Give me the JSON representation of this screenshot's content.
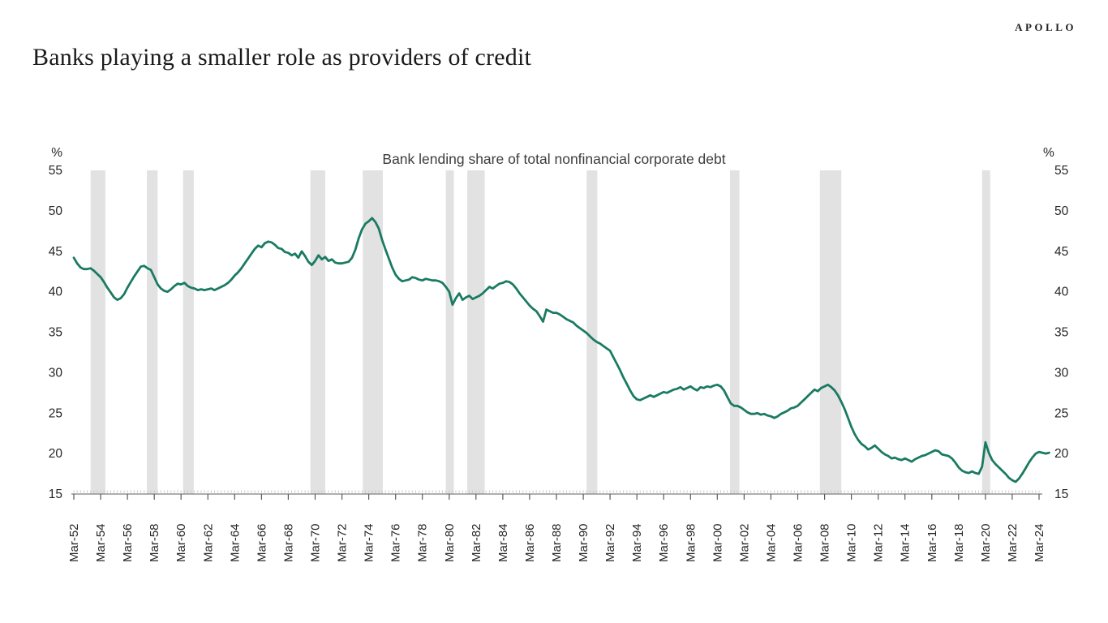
{
  "brand": {
    "logo": "APOLLO"
  },
  "header": {
    "title": "Banks playing a smaller role as providers of credit"
  },
  "chart_data": {
    "type": "line",
    "title": "Bank lending share of total nonfinancial corporate debt",
    "y_unit": "%",
    "ylim": [
      15,
      55
    ],
    "yticks": [
      15,
      20,
      25,
      30,
      35,
      40,
      45,
      50,
      55
    ],
    "grid": "off",
    "legend": "none",
    "x_tick_labels": [
      "Mar-52",
      "Mar-54",
      "Mar-56",
      "Mar-58",
      "Mar-60",
      "Mar-62",
      "Mar-64",
      "Mar-66",
      "Mar-68",
      "Mar-70",
      "Mar-72",
      "Mar-74",
      "Mar-76",
      "Mar-78",
      "Mar-80",
      "Mar-82",
      "Mar-84",
      "Mar-86",
      "Mar-88",
      "Mar-90",
      "Mar-92",
      "Mar-94",
      "Mar-96",
      "Mar-98",
      "Mar-00",
      "Mar-02",
      "Mar-04",
      "Mar-06",
      "Mar-08",
      "Mar-10",
      "Mar-12",
      "Mar-14",
      "Mar-16",
      "Mar-18",
      "Mar-20",
      "Mar-22",
      "Mar-24"
    ],
    "x_first_tick_year": 1952.25,
    "x_years_per_tick": 2,
    "recession_bands": [
      [
        1953.5,
        1954.6
      ],
      [
        1957.7,
        1958.5
      ],
      [
        1960.4,
        1961.2
      ],
      [
        1969.9,
        1971.0
      ],
      [
        1973.8,
        1975.3
      ],
      [
        1980.0,
        1980.6
      ],
      [
        1981.6,
        1982.9
      ],
      [
        1990.5,
        1991.3
      ],
      [
        2001.2,
        2001.9
      ],
      [
        2007.9,
        2009.5
      ],
      [
        2020.0,
        2020.6
      ]
    ],
    "series": [
      {
        "name": "Bank lending share of total nonfinancial corporate debt",
        "start_year": 1952.25,
        "step_years": 0.25,
        "values": [
          44.2,
          43.5,
          43.0,
          42.8,
          42.8,
          42.9,
          42.6,
          42.2,
          41.8,
          41.2,
          40.5,
          39.9,
          39.3,
          39.0,
          39.2,
          39.7,
          40.5,
          41.2,
          41.9,
          42.5,
          43.1,
          43.2,
          42.9,
          42.7,
          41.8,
          40.9,
          40.4,
          40.1,
          40.0,
          40.3,
          40.7,
          41.0,
          40.9,
          41.1,
          40.7,
          40.5,
          40.4,
          40.2,
          40.3,
          40.2,
          40.3,
          40.4,
          40.2,
          40.4,
          40.6,
          40.8,
          41.1,
          41.5,
          42.0,
          42.4,
          42.9,
          43.5,
          44.1,
          44.7,
          45.3,
          45.7,
          45.5,
          46.0,
          46.2,
          46.1,
          45.8,
          45.4,
          45.3,
          44.9,
          44.8,
          44.5,
          44.7,
          44.2,
          45.0,
          44.4,
          43.7,
          43.3,
          43.8,
          44.5,
          44.0,
          44.3,
          43.8,
          44.0,
          43.6,
          43.5,
          43.5,
          43.6,
          43.7,
          44.2,
          45.2,
          46.6,
          47.7,
          48.4,
          48.7,
          49.1,
          48.6,
          47.8,
          46.4,
          45.2,
          44.1,
          43.0,
          42.1,
          41.6,
          41.3,
          41.4,
          41.5,
          41.8,
          41.7,
          41.5,
          41.4,
          41.6,
          41.5,
          41.4,
          41.4,
          41.3,
          41.1,
          40.6,
          40.0,
          38.4,
          39.2,
          39.8,
          39.0,
          39.3,
          39.5,
          39.1,
          39.3,
          39.5,
          39.8,
          40.2,
          40.6,
          40.4,
          40.7,
          41.0,
          41.1,
          41.3,
          41.2,
          40.9,
          40.4,
          39.8,
          39.3,
          38.8,
          38.3,
          37.9,
          37.6,
          37.0,
          36.3,
          37.8,
          37.6,
          37.4,
          37.4,
          37.2,
          36.9,
          36.6,
          36.4,
          36.2,
          35.8,
          35.5,
          35.2,
          34.9,
          34.5,
          34.1,
          33.8,
          33.6,
          33.3,
          33.0,
          32.7,
          31.9,
          31.1,
          30.3,
          29.4,
          28.6,
          27.8,
          27.1,
          26.7,
          26.6,
          26.8,
          27.0,
          27.2,
          27.0,
          27.2,
          27.4,
          27.6,
          27.5,
          27.7,
          27.9,
          28.0,
          28.2,
          27.9,
          28.1,
          28.3,
          28.0,
          27.8,
          28.2,
          28.1,
          28.3,
          28.2,
          28.4,
          28.5,
          28.3,
          27.8,
          27.0,
          26.2,
          25.9,
          25.9,
          25.7,
          25.4,
          25.1,
          24.9,
          24.9,
          25.0,
          24.8,
          24.9,
          24.7,
          24.6,
          24.4,
          24.6,
          24.9,
          25.1,
          25.3,
          25.6,
          25.7,
          25.9,
          26.3,
          26.7,
          27.1,
          27.5,
          27.9,
          27.7,
          28.1,
          28.3,
          28.5,
          28.2,
          27.8,
          27.2,
          26.4,
          25.5,
          24.4,
          23.3,
          22.4,
          21.7,
          21.2,
          20.9,
          20.5,
          20.7,
          21.0,
          20.6,
          20.2,
          19.9,
          19.7,
          19.4,
          19.5,
          19.3,
          19.2,
          19.4,
          19.2,
          19.0,
          19.3,
          19.5,
          19.7,
          19.8,
          20.0,
          20.2,
          20.4,
          20.3,
          19.9,
          19.8,
          19.7,
          19.4,
          18.9,
          18.3,
          17.9,
          17.7,
          17.6,
          17.8,
          17.6,
          17.5,
          18.4,
          21.4,
          20.1,
          19.2,
          18.7,
          18.3,
          17.9,
          17.5,
          17.0,
          16.7,
          16.5,
          16.9,
          17.5,
          18.2,
          18.9,
          19.5,
          20.0,
          20.2,
          20.1,
          20.0,
          20.1
        ]
      }
    ],
    "colors": {
      "line": "#1a7b62",
      "band": "#e2e2e2",
      "axis_line": "#7f7f7f",
      "major_tick": "#595959",
      "minor_tick": "#c9c9c9",
      "axis_label": "#262626",
      "chart_title": "#3d3d3d"
    }
  }
}
